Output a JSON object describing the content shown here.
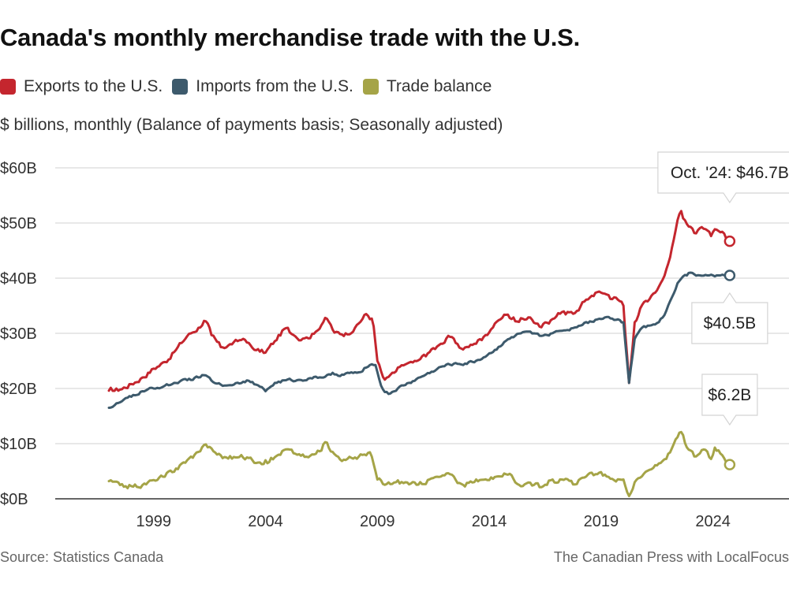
{
  "title": "Canada's monthly merchandise trade with the U.S.",
  "subtitle": "$ billions, monthly (Balance of payments basis; Seasonally adjusted)",
  "legend": [
    {
      "label": "Exports to the U.S.",
      "color": "#c4262e"
    },
    {
      "label": "Imports from the U.S.",
      "color": "#3d5a6c"
    },
    {
      "label": "Trade balance",
      "color": "#a5a447"
    }
  ],
  "source": "Source:  Statistics Canada",
  "credit": "The Canadian Press with LocalFocus",
  "callouts": {
    "exports": "Oct. '24: $46.7B",
    "imports": "$40.5B",
    "balance": "$6.2B"
  },
  "chart_data": {
    "type": "line",
    "x_start": 1997.0,
    "x_end": 2024.75,
    "xlim": [
      1994.6,
      2027.4
    ],
    "ylim": [
      0,
      60
    ],
    "yticks": [
      0,
      10,
      20,
      30,
      40,
      50,
      60
    ],
    "ytick_labels": [
      "$0B",
      "$10B",
      "$20B",
      "$30B",
      "$40B",
      "$50B",
      "$60B"
    ],
    "xticks": [
      1999,
      2004,
      2009,
      2014,
      2019,
      2024
    ],
    "xtick_labels": [
      "1999",
      "2004",
      "2009",
      "2014",
      "2019",
      "2024"
    ],
    "grid": true,
    "series": [
      {
        "name": "Exports to the U.S.",
        "color": "#c4262e",
        "points": [
          [
            1997.0,
            19.6
          ],
          [
            1997.5,
            19.8
          ],
          [
            1998.0,
            20.8
          ],
          [
            1998.5,
            22.0
          ],
          [
            1999.0,
            23.6
          ],
          [
            1999.5,
            24.8
          ],
          [
            2000.0,
            27.0
          ],
          [
            2000.5,
            29.5
          ],
          [
            2001.0,
            31.0
          ],
          [
            2001.3,
            32.5
          ],
          [
            2001.6,
            29.5
          ],
          [
            2002.0,
            27.5
          ],
          [
            2002.5,
            28.0
          ],
          [
            2003.0,
            29.0
          ],
          [
            2003.5,
            27.0
          ],
          [
            2004.0,
            26.5
          ],
          [
            2004.4,
            28.5
          ],
          [
            2004.9,
            31.0
          ],
          [
            2005.3,
            29.5
          ],
          [
            2005.7,
            29.0
          ],
          [
            2006.2,
            30.0
          ],
          [
            2006.7,
            33.0
          ],
          [
            2007.1,
            30.0
          ],
          [
            2007.6,
            30.0
          ],
          [
            2008.0,
            31.0
          ],
          [
            2008.5,
            33.5
          ],
          [
            2008.8,
            32.5
          ],
          [
            2009.0,
            25.0
          ],
          [
            2009.3,
            21.5
          ],
          [
            2009.8,
            23.0
          ],
          [
            2010.3,
            24.5
          ],
          [
            2010.8,
            25.0
          ],
          [
            2011.3,
            26.5
          ],
          [
            2011.8,
            28.0
          ],
          [
            2012.3,
            29.5
          ],
          [
            2012.8,
            27.0
          ],
          [
            2013.3,
            28.0
          ],
          [
            2013.8,
            29.5
          ],
          [
            2014.3,
            32.0
          ],
          [
            2014.8,
            33.5
          ],
          [
            2015.3,
            32.0
          ],
          [
            2015.8,
            33.0
          ],
          [
            2016.3,
            31.0
          ],
          [
            2016.8,
            32.5
          ],
          [
            2017.3,
            34.0
          ],
          [
            2017.8,
            33.5
          ],
          [
            2018.3,
            36.0
          ],
          [
            2018.8,
            37.5
          ],
          [
            2019.3,
            37.0
          ],
          [
            2019.8,
            36.0
          ],
          [
            2020.0,
            35.0
          ],
          [
            2020.25,
            21.0
          ],
          [
            2020.5,
            32.0
          ],
          [
            2020.8,
            35.0
          ],
          [
            2021.3,
            37.0
          ],
          [
            2021.8,
            40.0
          ],
          [
            2022.1,
            44.0
          ],
          [
            2022.35,
            49.0
          ],
          [
            2022.55,
            52.5
          ],
          [
            2022.8,
            50.0
          ],
          [
            2023.2,
            48.0
          ],
          [
            2023.6,
            49.0
          ],
          [
            2023.9,
            47.5
          ],
          [
            2024.1,
            49.0
          ],
          [
            2024.4,
            48.5
          ],
          [
            2024.75,
            46.7
          ]
        ]
      },
      {
        "name": "Imports from the U.S.",
        "color": "#3d5a6c",
        "points": [
          [
            1997.0,
            16.5
          ],
          [
            1997.5,
            17.5
          ],
          [
            1998.0,
            18.5
          ],
          [
            1998.5,
            19.5
          ],
          [
            1999.0,
            20.0
          ],
          [
            1999.5,
            20.5
          ],
          [
            2000.0,
            21.0
          ],
          [
            2000.5,
            21.5
          ],
          [
            2001.0,
            22.0
          ],
          [
            2001.3,
            22.5
          ],
          [
            2001.7,
            21.0
          ],
          [
            2002.2,
            20.5
          ],
          [
            2002.7,
            21.0
          ],
          [
            2003.2,
            21.5
          ],
          [
            2003.7,
            20.5
          ],
          [
            2004.0,
            19.5
          ],
          [
            2004.4,
            21.0
          ],
          [
            2004.9,
            21.5
          ],
          [
            2005.4,
            21.5
          ],
          [
            2005.9,
            21.8
          ],
          [
            2006.4,
            22.0
          ],
          [
            2006.9,
            22.5
          ],
          [
            2007.4,
            22.5
          ],
          [
            2007.9,
            22.8
          ],
          [
            2008.3,
            23.0
          ],
          [
            2008.6,
            24.0
          ],
          [
            2008.9,
            24.5
          ],
          [
            2009.2,
            20.0
          ],
          [
            2009.5,
            19.0
          ],
          [
            2009.9,
            20.0
          ],
          [
            2010.4,
            21.0
          ],
          [
            2010.9,
            22.0
          ],
          [
            2011.4,
            23.0
          ],
          [
            2011.9,
            24.0
          ],
          [
            2012.4,
            24.5
          ],
          [
            2012.9,
            24.5
          ],
          [
            2013.4,
            25.0
          ],
          [
            2013.9,
            26.0
          ],
          [
            2014.4,
            27.5
          ],
          [
            2014.9,
            29.0
          ],
          [
            2015.4,
            30.0
          ],
          [
            2015.9,
            30.0
          ],
          [
            2016.3,
            29.5
          ],
          [
            2016.8,
            30.0
          ],
          [
            2017.3,
            30.5
          ],
          [
            2017.8,
            31.0
          ],
          [
            2018.3,
            32.0
          ],
          [
            2018.8,
            32.5
          ],
          [
            2019.3,
            33.0
          ],
          [
            2019.8,
            32.5
          ],
          [
            2020.0,
            32.0
          ],
          [
            2020.25,
            21.0
          ],
          [
            2020.5,
            29.0
          ],
          [
            2020.8,
            31.0
          ],
          [
            2021.3,
            31.5
          ],
          [
            2021.8,
            33.0
          ],
          [
            2022.1,
            36.0
          ],
          [
            2022.4,
            39.0
          ],
          [
            2022.7,
            40.5
          ],
          [
            2023.0,
            41.0
          ],
          [
            2023.4,
            40.5
          ],
          [
            2023.8,
            40.5
          ],
          [
            2024.2,
            40.5
          ],
          [
            2024.75,
            40.5
          ]
        ]
      },
      {
        "name": "Trade balance",
        "color": "#a5a447",
        "points": [
          [
            1997.0,
            3.2
          ],
          [
            1997.5,
            2.5
          ],
          [
            1998.0,
            2.3
          ],
          [
            1998.5,
            2.5
          ],
          [
            1999.0,
            3.4
          ],
          [
            1999.5,
            4.0
          ],
          [
            2000.0,
            5.5
          ],
          [
            2000.5,
            7.0
          ],
          [
            2001.0,
            8.5
          ],
          [
            2001.3,
            10.0
          ],
          [
            2001.7,
            8.5
          ],
          [
            2002.2,
            7.5
          ],
          [
            2002.7,
            7.5
          ],
          [
            2003.2,
            7.5
          ],
          [
            2003.7,
            6.5
          ],
          [
            2004.0,
            7.0
          ],
          [
            2004.4,
            7.5
          ],
          [
            2004.9,
            9.0
          ],
          [
            2005.4,
            8.0
          ],
          [
            2005.9,
            7.5
          ],
          [
            2006.4,
            8.5
          ],
          [
            2006.7,
            10.5
          ],
          [
            2007.1,
            8.0
          ],
          [
            2007.6,
            7.0
          ],
          [
            2008.0,
            7.5
          ],
          [
            2008.4,
            8.0
          ],
          [
            2008.7,
            8.5
          ],
          [
            2009.0,
            3.5
          ],
          [
            2009.3,
            2.5
          ],
          [
            2009.8,
            3.0
          ],
          [
            2010.3,
            3.0
          ],
          [
            2010.8,
            2.5
          ],
          [
            2011.3,
            3.5
          ],
          [
            2011.8,
            4.0
          ],
          [
            2012.3,
            4.5
          ],
          [
            2012.8,
            2.5
          ],
          [
            2013.3,
            3.0
          ],
          [
            2013.8,
            3.5
          ],
          [
            2014.3,
            4.0
          ],
          [
            2014.8,
            4.5
          ],
          [
            2015.3,
            2.5
          ],
          [
            2015.8,
            3.0
          ],
          [
            2016.3,
            2.0
          ],
          [
            2016.8,
            3.5
          ],
          [
            2017.3,
            3.5
          ],
          [
            2017.8,
            2.5
          ],
          [
            2018.3,
            4.0
          ],
          [
            2018.8,
            4.5
          ],
          [
            2019.3,
            4.0
          ],
          [
            2019.8,
            3.5
          ],
          [
            2020.0,
            3.5
          ],
          [
            2020.25,
            0.5
          ],
          [
            2020.5,
            3.0
          ],
          [
            2020.8,
            4.0
          ],
          [
            2021.3,
            5.5
          ],
          [
            2021.8,
            7.0
          ],
          [
            2022.1,
            8.5
          ],
          [
            2022.4,
            11.0
          ],
          [
            2022.55,
            12.5
          ],
          [
            2022.8,
            9.5
          ],
          [
            2023.2,
            7.5
          ],
          [
            2023.6,
            9.0
          ],
          [
            2023.9,
            7.0
          ],
          [
            2024.1,
            9.5
          ],
          [
            2024.4,
            8.0
          ],
          [
            2024.75,
            6.2
          ]
        ]
      }
    ]
  }
}
